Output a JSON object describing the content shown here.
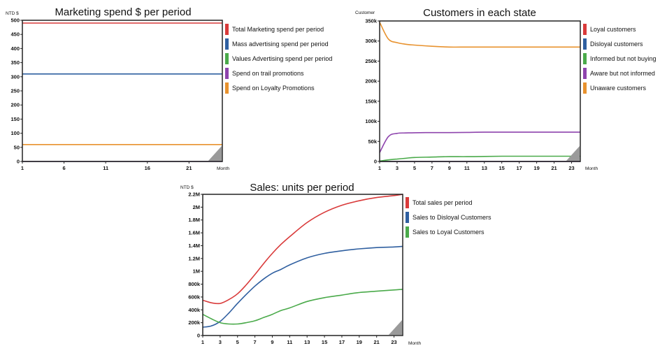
{
  "chart_data": [
    {
      "type": "line",
      "title": "Marketing spend $ per period",
      "ylabel": "NTD $",
      "xlabel": "Month",
      "xlim": [
        1,
        25
      ],
      "ylim": [
        0,
        500
      ],
      "x_ticks": [
        "1",
        "6",
        "11",
        "16",
        "21"
      ],
      "y_ticks": [
        "0",
        "50",
        "100",
        "150",
        "200",
        "250",
        "300",
        "350",
        "400",
        "450",
        "500"
      ],
      "x": [
        1,
        25
      ],
      "series": [
        {
          "name": "Total Marketing spend per period",
          "color": "#d93a3a",
          "values": [
            490,
            490
          ]
        },
        {
          "name": "Mass advertising spend per period",
          "color": "#2f5fa0",
          "values": [
            310,
            310
          ]
        },
        {
          "name": "Values Advertising spend per period",
          "color": "#4aaa4a",
          "values": [
            0,
            0
          ]
        },
        {
          "name": "Spend on trail promotions",
          "color": "#8e44ad",
          "values": [
            0,
            0
          ]
        },
        {
          "name": "Spend on Loyalty Promotions",
          "color": "#e8922e",
          "values": [
            60,
            60
          ]
        }
      ]
    },
    {
      "type": "line",
      "title": "Customers in each state",
      "ylabel": "Customer",
      "xlabel": "Month",
      "xlim": [
        1,
        24
      ],
      "ylim": [
        0,
        350000
      ],
      "x_ticks": [
        "1",
        "3",
        "5",
        "7",
        "9",
        "11",
        "13",
        "15",
        "17",
        "19",
        "21",
        "23"
      ],
      "y_ticks": [
        "0",
        "50k",
        "100k",
        "150k",
        "200k",
        "250k",
        "300k",
        "350k"
      ],
      "x": [
        1,
        2,
        3,
        4,
        5,
        7,
        9,
        11,
        13,
        15,
        17,
        19,
        21,
        23,
        24
      ],
      "series": [
        {
          "name": "Loyal customers",
          "color": "#d93a3a",
          "values": [
            0,
            0,
            0,
            0,
            0,
            0,
            0,
            0,
            0,
            0,
            0,
            0,
            0,
            0,
            0
          ]
        },
        {
          "name": "Disloyal customers",
          "color": "#2f5fa0",
          "values": [
            0,
            0,
            0,
            0,
            0,
            0,
            0,
            0,
            0,
            0,
            0,
            0,
            0,
            0,
            0
          ]
        },
        {
          "name": "Informed but not buying",
          "color": "#4aaa4a",
          "values": [
            1000,
            4000,
            6000,
            8000,
            10000,
            11000,
            12000,
            12000,
            12500,
            13000,
            13000,
            13000,
            13000,
            13000,
            13000
          ]
        },
        {
          "name": "Aware but not informed",
          "color": "#8e44ad",
          "values": [
            22000,
            62000,
            70000,
            71000,
            71500,
            72000,
            72000,
            72500,
            73000,
            73000,
            73000,
            73000,
            73000,
            73000,
            73000
          ]
        },
        {
          "name": "Unaware customers",
          "color": "#e8922e",
          "values": [
            347000,
            305000,
            296000,
            292000,
            290000,
            287000,
            285000,
            285000,
            285000,
            285000,
            285000,
            285000,
            285000,
            285000,
            285000
          ]
        }
      ]
    },
    {
      "type": "line",
      "title": "Sales: units per period",
      "ylabel": "NTD $",
      "xlabel": "Month",
      "xlim": [
        1,
        24
      ],
      "ylim": [
        0,
        2200000
      ],
      "x_ticks": [
        "1",
        "3",
        "5",
        "7",
        "9",
        "11",
        "13",
        "15",
        "17",
        "19",
        "21",
        "23"
      ],
      "y_ticks": [
        "0",
        "200k",
        "400k",
        "600k",
        "800k",
        "1M",
        "1.2M",
        "1.4M",
        "1.6M",
        "1.8M",
        "2M",
        "2.2M"
      ],
      "x": [
        1,
        2,
        3,
        4,
        5,
        6,
        7,
        8,
        9,
        10,
        11,
        13,
        15,
        17,
        19,
        21,
        23,
        24
      ],
      "series": [
        {
          "name": "Total sales per period",
          "color": "#d93a3a",
          "values": [
            550000,
            510000,
            500000,
            560000,
            650000,
            790000,
            950000,
            1120000,
            1280000,
            1420000,
            1540000,
            1760000,
            1920000,
            2030000,
            2100000,
            2150000,
            2180000,
            2200000
          ]
        },
        {
          "name": "Sales to Disloyal Customers",
          "color": "#2f5fa0",
          "values": [
            130000,
            150000,
            220000,
            350000,
            500000,
            640000,
            770000,
            880000,
            970000,
            1030000,
            1100000,
            1210000,
            1280000,
            1320000,
            1350000,
            1370000,
            1380000,
            1390000
          ]
        },
        {
          "name": "Sales to Loyal Customers",
          "color": "#4aaa4a",
          "values": [
            330000,
            260000,
            200000,
            180000,
            180000,
            200000,
            230000,
            280000,
            330000,
            390000,
            430000,
            530000,
            590000,
            630000,
            670000,
            690000,
            710000,
            720000
          ]
        }
      ]
    }
  ]
}
